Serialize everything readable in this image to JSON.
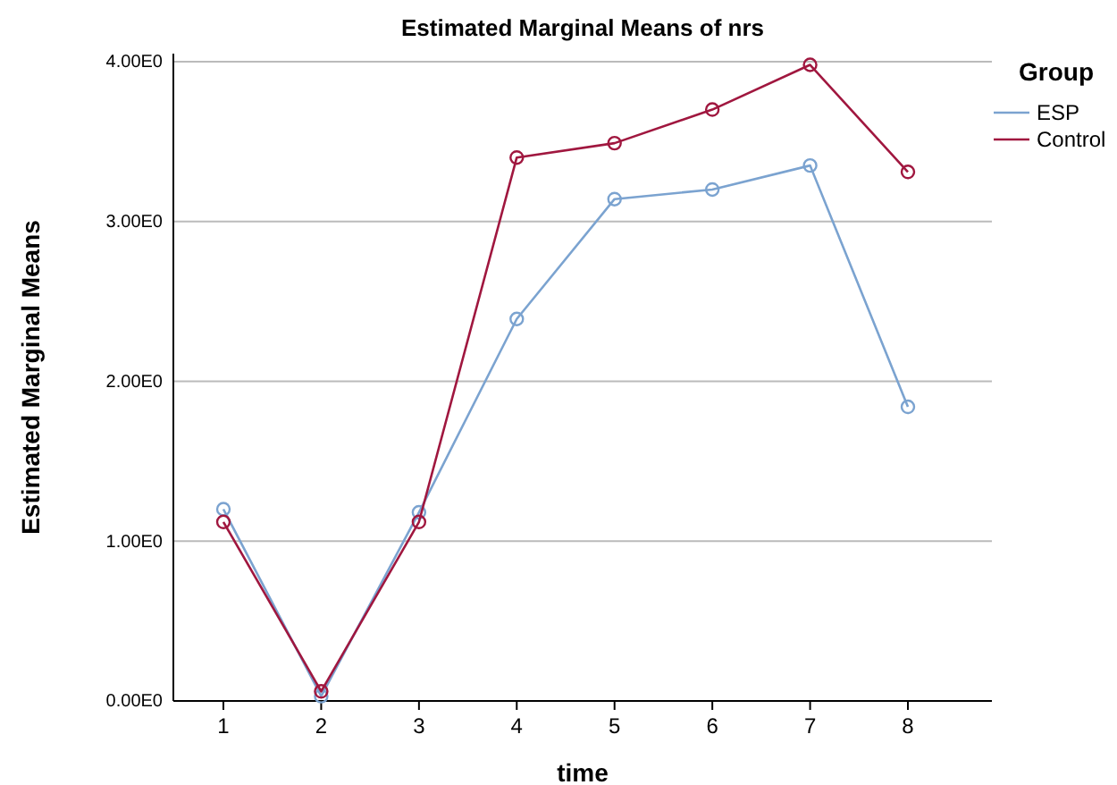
{
  "chart_data": {
    "type": "line",
    "title": "Estimated Marginal Means of nrs",
    "xlabel": "time",
    "ylabel": "Estimated Marginal Means",
    "legend_title": "Group",
    "categories": [
      "1",
      "2",
      "3",
      "4",
      "5",
      "6",
      "7",
      "8"
    ],
    "series": [
      {
        "name": "ESP",
        "color": "#7ba3d0",
        "values": [
          1.2,
          0.03,
          1.18,
          2.39,
          3.14,
          3.2,
          3.35,
          1.84
        ]
      },
      {
        "name": "Control",
        "color": "#a0173f",
        "values": [
          1.12,
          0.06,
          1.12,
          3.4,
          3.49,
          3.7,
          3.98,
          3.31
        ]
      }
    ],
    "ylim": [
      0,
      4.05
    ],
    "yticks": [
      {
        "value": 0,
        "label": "0.00E0"
      },
      {
        "value": 1,
        "label": "1.00E0"
      },
      {
        "value": 2,
        "label": "2.00E0"
      },
      {
        "value": 3,
        "label": "3.00E0"
      },
      {
        "value": 4,
        "label": "4.00E0"
      }
    ],
    "grid": "y",
    "legend": "top right",
    "marker": "circle",
    "line_style": "solid"
  }
}
